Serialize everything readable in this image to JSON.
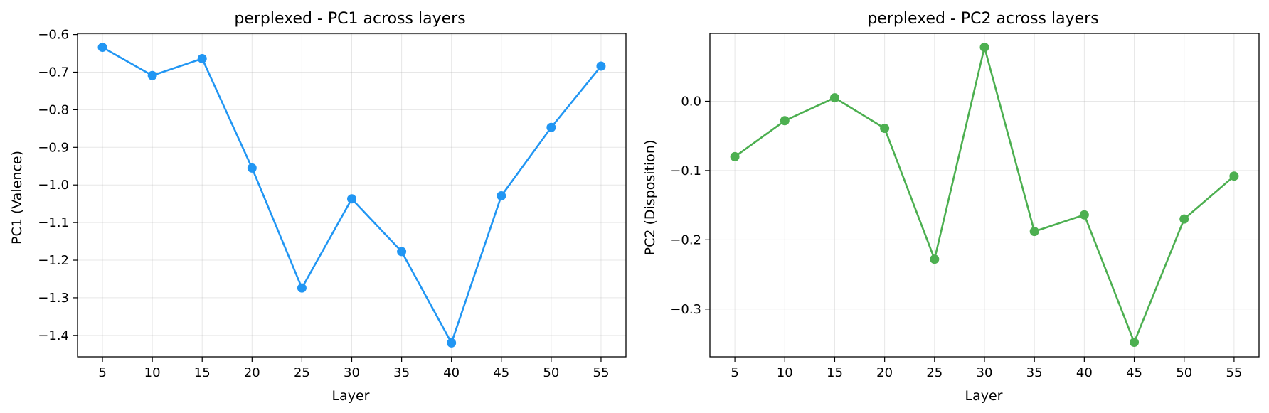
{
  "chart_data": [
    {
      "type": "line",
      "title": "perplexed - PC1 across layers",
      "xlabel": "Layer",
      "ylabel": "PC1 (Valence)",
      "x": [
        5,
        10,
        15,
        20,
        25,
        30,
        35,
        40,
        45,
        50,
        55
      ],
      "xticks": [
        "5",
        "10",
        "15",
        "20",
        "25",
        "30",
        "35",
        "40",
        "45",
        "50",
        "55"
      ],
      "xlim": [
        2.5,
        57.5
      ],
      "ylim": [
        -1.457,
        -0.597
      ],
      "yticks": [
        -0.6,
        -0.7,
        -0.8,
        -0.9,
        -1.0,
        -1.1,
        -1.2,
        -1.3,
        -1.4
      ],
      "yticklabels": [
        "−0.6",
        "−0.7",
        "−0.8",
        "−0.9",
        "−1.0",
        "−1.1",
        "−1.2",
        "−1.3",
        "−1.4"
      ],
      "grid": true,
      "series": [
        {
          "color": "#2196F3",
          "values": [
            -0.634,
            -0.709,
            -0.664,
            -0.955,
            -1.274,
            -1.037,
            -1.177,
            -1.42,
            -1.029,
            -0.847,
            -0.684
          ]
        }
      ]
    },
    {
      "type": "line",
      "title": "perplexed - PC2 across layers",
      "xlabel": "Layer",
      "ylabel": "PC2 (Disposition)",
      "x": [
        5,
        10,
        15,
        20,
        25,
        30,
        35,
        40,
        45,
        50,
        55
      ],
      "xticks": [
        "5",
        "10",
        "15",
        "20",
        "25",
        "30",
        "35",
        "40",
        "45",
        "50",
        "55"
      ],
      "xlim": [
        2.5,
        57.5
      ],
      "ylim": [
        -0.369,
        0.098
      ],
      "yticks": [
        0.0,
        -0.1,
        -0.2,
        -0.3
      ],
      "yticklabels": [
        "0.0",
        "−0.1",
        "−0.2",
        "−0.3"
      ],
      "grid": true,
      "series": [
        {
          "color": "#4CAF50",
          "values": [
            -0.08,
            -0.028,
            0.005,
            -0.039,
            -0.228,
            0.078,
            -0.188,
            -0.164,
            -0.348,
            -0.17,
            -0.108
          ]
        }
      ]
    }
  ]
}
